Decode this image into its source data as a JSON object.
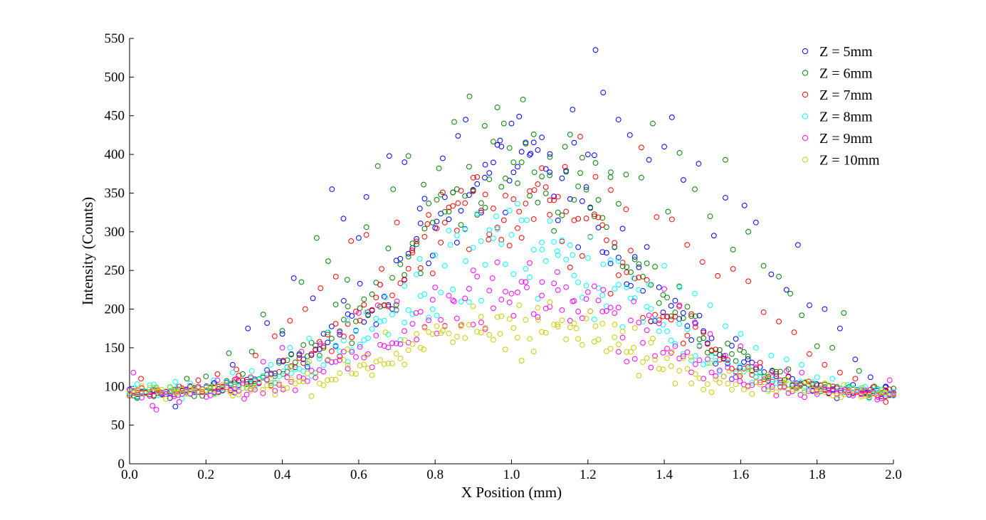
{
  "chart_data": {
    "type": "scatter",
    "title": "",
    "xlabel": "X Position (mm)",
    "ylabel": "Intensity (Counts)",
    "xlim": [
      0,
      2
    ],
    "ylim": [
      0,
      550
    ],
    "xticks": [
      "0.0",
      "0.2",
      "0.4",
      "0.6",
      "0.8",
      "1.0",
      "1.2",
      "1.4",
      "1.6",
      "1.8",
      "2.0"
    ],
    "yticks": [
      "0",
      "50",
      "100",
      "150",
      "200",
      "250",
      "300",
      "350",
      "400",
      "450",
      "500",
      "550"
    ],
    "grid": false,
    "legend_position": "top-right",
    "marker": "open-circle",
    "series": [
      {
        "name": "Z = 5mm",
        "color": "#0000ff",
        "peak": 375,
        "noise": 60,
        "baseline": 90,
        "points": [
          [
            0.02,
            90
          ],
          [
            0.07,
            98
          ],
          [
            0.12,
            74
          ],
          [
            0.17,
            95
          ],
          [
            0.22,
            104
          ],
          [
            0.27,
            128
          ],
          [
            0.31,
            175
          ],
          [
            0.36,
            182
          ],
          [
            0.4,
            168
          ],
          [
            0.43,
            240
          ],
          [
            0.48,
            214
          ],
          [
            0.53,
            355
          ],
          [
            0.56,
            317
          ],
          [
            0.6,
            292
          ],
          [
            0.62,
            345
          ],
          [
            0.68,
            398
          ],
          [
            0.72,
            390
          ],
          [
            0.76,
            330
          ],
          [
            0.8,
            305
          ],
          [
            0.82,
            395
          ],
          [
            0.86,
            424
          ],
          [
            0.88,
            445
          ],
          [
            0.93,
            370
          ],
          [
            0.97,
            418
          ],
          [
            1.0,
            440
          ],
          [
            1.02,
            449
          ],
          [
            1.05,
            401
          ],
          [
            1.1,
            377
          ],
          [
            1.16,
            458
          ],
          [
            1.2,
            400
          ],
          [
            1.22,
            535
          ],
          [
            1.24,
            480
          ],
          [
            1.28,
            445
          ],
          [
            1.31,
            425
          ],
          [
            1.36,
            393
          ],
          [
            1.4,
            410
          ],
          [
            1.42,
            448
          ],
          [
            1.45,
            367
          ],
          [
            1.49,
            388
          ],
          [
            1.53,
            295
          ],
          [
            1.56,
            344
          ],
          [
            1.61,
            334
          ],
          [
            1.64,
            312
          ],
          [
            1.68,
            245
          ],
          [
            1.72,
            225
          ],
          [
            1.75,
            283
          ],
          [
            1.78,
            205
          ],
          [
            1.82,
            200
          ],
          [
            1.86,
            175
          ],
          [
            1.9,
            135
          ],
          [
            1.94,
            112
          ],
          [
            1.98,
            100
          ]
        ]
      },
      {
        "name": "Z = 6mm",
        "color": "#008000",
        "peak": 385,
        "noise": 60,
        "baseline": 90,
        "points": [
          [
            0.02,
            85
          ],
          [
            0.06,
            95
          ],
          [
            0.11,
            94
          ],
          [
            0.15,
            110
          ],
          [
            0.2,
            113
          ],
          [
            0.26,
            143
          ],
          [
            0.32,
            145
          ],
          [
            0.35,
            193
          ],
          [
            0.4,
            172
          ],
          [
            0.45,
            235
          ],
          [
            0.49,
            292
          ],
          [
            0.52,
            262
          ],
          [
            0.57,
            238
          ],
          [
            0.62,
            306
          ],
          [
            0.65,
            385
          ],
          [
            0.69,
            355
          ],
          [
            0.73,
            398
          ],
          [
            0.77,
            361
          ],
          [
            0.81,
            382
          ],
          [
            0.85,
            442
          ],
          [
            0.89,
            475
          ],
          [
            0.93,
            437
          ],
          [
            0.98,
            440
          ],
          [
            1.03,
            471
          ],
          [
            1.06,
            377
          ],
          [
            1.1,
            373
          ],
          [
            1.14,
            410
          ],
          [
            1.18,
            376
          ],
          [
            1.22,
            389
          ],
          [
            1.26,
            377
          ],
          [
            1.3,
            374
          ],
          [
            1.34,
            370
          ],
          [
            1.37,
            440
          ],
          [
            1.41,
            326
          ],
          [
            1.44,
            402
          ],
          [
            1.48,
            355
          ],
          [
            1.52,
            320
          ],
          [
            1.56,
            393
          ],
          [
            1.58,
            277
          ],
          [
            1.62,
            300
          ],
          [
            1.66,
            256
          ],
          [
            1.7,
            242
          ],
          [
            1.73,
            220
          ],
          [
            1.76,
            192
          ],
          [
            1.8,
            152
          ],
          [
            1.84,
            150
          ],
          [
            1.87,
            195
          ],
          [
            1.91,
            120
          ],
          [
            1.95,
            100
          ],
          [
            1.98,
            95
          ]
        ]
      },
      {
        "name": "Z = 7mm",
        "color": "#ff0000",
        "peak": 340,
        "noise": 55,
        "baseline": 90,
        "points": [
          [
            0.03,
            110
          ],
          [
            0.08,
            92
          ],
          [
            0.13,
            100
          ],
          [
            0.18,
            108
          ],
          [
            0.23,
            116
          ],
          [
            0.28,
            122
          ],
          [
            0.33,
            140
          ],
          [
            0.38,
            165
          ],
          [
            0.42,
            185
          ],
          [
            0.46,
            200
          ],
          [
            0.5,
            227
          ],
          [
            0.54,
            242
          ],
          [
            0.58,
            288
          ],
          [
            0.62,
            296
          ],
          [
            0.66,
            252
          ],
          [
            0.7,
            312
          ],
          [
            0.74,
            276
          ],
          [
            0.78,
            310
          ],
          [
            0.82,
            351
          ],
          [
            0.86,
            337
          ],
          [
            0.9,
            370
          ],
          [
            0.94,
            290
          ],
          [
            0.98,
            315
          ],
          [
            1.02,
            326
          ],
          [
            1.06,
            354
          ],
          [
            1.1,
            322
          ],
          [
            1.14,
            384
          ],
          [
            1.18,
            423
          ],
          [
            1.22,
            371
          ],
          [
            1.26,
            354
          ],
          [
            1.3,
            329
          ],
          [
            1.34,
            409
          ],
          [
            1.38,
            319
          ],
          [
            1.42,
            316
          ],
          [
            1.46,
            283
          ],
          [
            1.5,
            261
          ],
          [
            1.54,
            243
          ],
          [
            1.58,
            252
          ],
          [
            1.62,
            236
          ],
          [
            1.66,
            196
          ],
          [
            1.7,
            184
          ],
          [
            1.74,
            170
          ],
          [
            1.78,
            142
          ],
          [
            1.82,
            128
          ],
          [
            1.86,
            118
          ],
          [
            1.9,
            110
          ],
          [
            1.94,
            96
          ],
          [
            1.98,
            80
          ]
        ]
      },
      {
        "name": "Z = 8mm",
        "color": "#00ffff",
        "peak": 280,
        "noise": 45,
        "baseline": 92,
        "points": [
          [
            0.02,
            103
          ],
          [
            0.07,
            99
          ],
          [
            0.12,
            106
          ],
          [
            0.17,
            92
          ],
          [
            0.22,
            108
          ],
          [
            0.27,
            118
          ],
          [
            0.32,
            120
          ],
          [
            0.37,
            128
          ],
          [
            0.42,
            150
          ],
          [
            0.47,
            162
          ],
          [
            0.52,
            170
          ],
          [
            0.57,
            185
          ],
          [
            0.62,
            196
          ],
          [
            0.67,
            215
          ],
          [
            0.72,
            230
          ],
          [
            0.76,
            265
          ],
          [
            0.8,
            270
          ],
          [
            0.84,
            283
          ],
          [
            0.88,
            262
          ],
          [
            0.92,
            288
          ],
          [
            0.96,
            320
          ],
          [
            1.0,
            296
          ],
          [
            1.04,
            315
          ],
          [
            1.08,
            277
          ],
          [
            1.12,
            275
          ],
          [
            1.16,
            270
          ],
          [
            1.2,
            266
          ],
          [
            1.24,
            258
          ],
          [
            1.28,
            262
          ],
          [
            1.32,
            240
          ],
          [
            1.36,
            232
          ],
          [
            1.4,
            256
          ],
          [
            1.44,
            228
          ],
          [
            1.48,
            220
          ],
          [
            1.52,
            205
          ],
          [
            1.56,
            178
          ],
          [
            1.6,
            168
          ],
          [
            1.64,
            150
          ],
          [
            1.68,
            140
          ],
          [
            1.72,
            135
          ],
          [
            1.76,
            128
          ],
          [
            1.8,
            112
          ],
          [
            1.84,
            110
          ],
          [
            1.88,
            102
          ],
          [
            1.92,
            98
          ],
          [
            1.96,
            92
          ],
          [
            1.99,
            90
          ]
        ]
      },
      {
        "name": "Z = 9mm",
        "color": "#ff00ff",
        "peak": 220,
        "noise": 35,
        "baseline": 90,
        "points": [
          [
            0.01,
            118
          ],
          [
            0.06,
            75
          ],
          [
            0.07,
            70
          ],
          [
            0.13,
            80
          ],
          [
            0.18,
            100
          ],
          [
            0.23,
            108
          ],
          [
            0.28,
            110
          ],
          [
            0.3,
            84
          ],
          [
            0.35,
            132
          ],
          [
            0.4,
            150
          ],
          [
            0.45,
            145
          ],
          [
            0.5,
            155
          ],
          [
            0.55,
            170
          ],
          [
            0.6,
            195
          ],
          [
            0.65,
            205
          ],
          [
            0.7,
            210
          ],
          [
            0.75,
            195
          ],
          [
            0.8,
            228
          ],
          [
            0.85,
            210
          ],
          [
            0.9,
            250
          ],
          [
            0.95,
            240
          ],
          [
            1.0,
            220
          ],
          [
            1.04,
            228
          ],
          [
            1.08,
            235
          ],
          [
            1.12,
            248
          ],
          [
            1.16,
            210
          ],
          [
            1.2,
            222
          ],
          [
            1.24,
            225
          ],
          [
            1.28,
            202
          ],
          [
            1.32,
            210
          ],
          [
            1.36,
            192
          ],
          [
            1.4,
            226
          ],
          [
            1.44,
            205
          ],
          [
            1.48,
            183
          ],
          [
            1.52,
            168
          ],
          [
            1.56,
            140
          ],
          [
            1.6,
            152
          ],
          [
            1.64,
            128
          ],
          [
            1.68,
            118
          ],
          [
            1.72,
            120
          ],
          [
            1.76,
            118
          ],
          [
            1.8,
            90
          ],
          [
            1.84,
            95
          ],
          [
            1.88,
            92
          ],
          [
            1.92,
            93
          ],
          [
            1.96,
            86
          ],
          [
            1.99,
            108
          ]
        ]
      },
      {
        "name": "Z = 10mm",
        "color": "#cccc00",
        "peak": 180,
        "noise": 28,
        "baseline": 92,
        "points": [
          [
            0.02,
            96
          ],
          [
            0.07,
            98
          ],
          [
            0.12,
            92
          ],
          [
            0.17,
            100
          ],
          [
            0.22,
            100
          ],
          [
            0.27,
            88
          ],
          [
            0.32,
            100
          ],
          [
            0.37,
            110
          ],
          [
            0.42,
            125
          ],
          [
            0.47,
            132
          ],
          [
            0.52,
            135
          ],
          [
            0.57,
            148
          ],
          [
            0.62,
            140
          ],
          [
            0.67,
            170
          ],
          [
            0.72,
            160
          ],
          [
            0.77,
            148
          ],
          [
            0.82,
            172
          ],
          [
            0.87,
            180
          ],
          [
            0.92,
            190
          ],
          [
            0.97,
            168
          ],
          [
            1.02,
            205
          ],
          [
            1.07,
            186
          ],
          [
            1.12,
            180
          ],
          [
            1.17,
            175
          ],
          [
            1.22,
            178
          ],
          [
            1.27,
            180
          ],
          [
            1.32,
            150
          ],
          [
            1.37,
            162
          ],
          [
            1.42,
            145
          ],
          [
            1.47,
            138
          ],
          [
            1.52,
            130
          ],
          [
            1.57,
            120
          ],
          [
            1.62,
            122
          ],
          [
            1.67,
            115
          ],
          [
            1.72,
            108
          ],
          [
            1.77,
            106
          ],
          [
            1.82,
            104
          ],
          [
            1.87,
            102
          ],
          [
            1.92,
            98
          ],
          [
            1.97,
            95
          ]
        ]
      }
    ]
  }
}
